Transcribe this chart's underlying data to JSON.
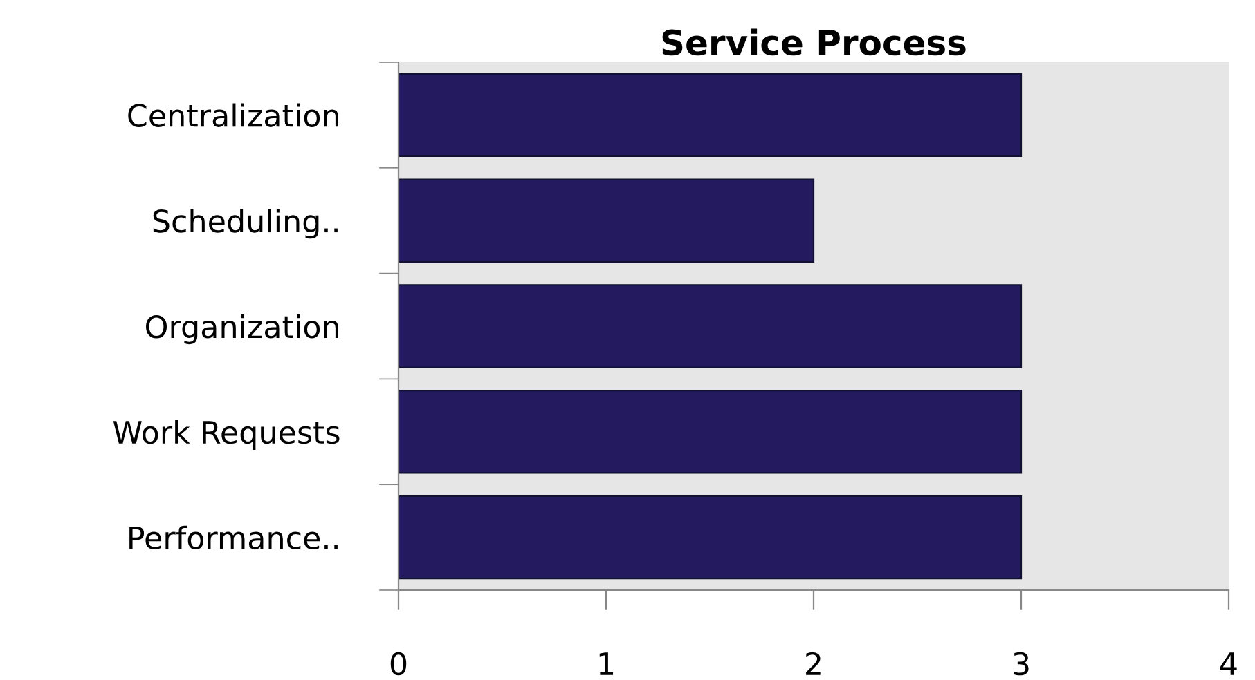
{
  "chart_data": {
    "type": "bar",
    "orientation": "horizontal",
    "title": "Service Process",
    "categories": [
      "Centralization",
      "Scheduling..",
      "Organization",
      "Work Requests",
      "Performance.."
    ],
    "values": [
      3,
      2,
      3,
      3,
      3
    ],
    "color": "#231a5f",
    "xlim": [
      0,
      4
    ],
    "xticks": [
      0,
      1,
      2,
      3,
      4
    ],
    "grid": false,
    "legend": false
  }
}
